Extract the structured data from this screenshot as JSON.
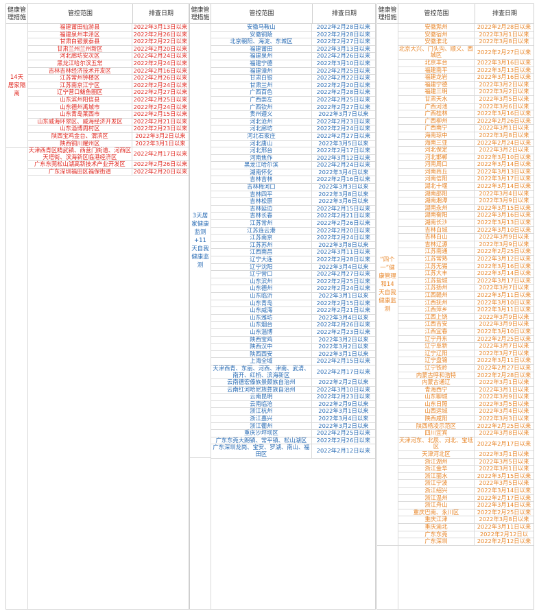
{
  "headers": [
    "健康管理措施",
    "管控范围",
    "排查日期"
  ],
  "groups": [
    {
      "measure": "14天居家隔离",
      "rows": [
        {
          "area": "福建莆田仙游县",
          "date": "2022年3月13日以来"
        },
        {
          "area": "福建泉州丰泽区",
          "date": "2022年2月26日以来"
        },
        {
          "area": "甘肃白银景泰县",
          "date": "2022年2月22日以来"
        },
        {
          "area": "甘肃兰州兰州新区",
          "date": "2022年2月20日以来"
        },
        {
          "area": "河北廊坊安次区",
          "date": "2022年2月24日以来"
        },
        {
          "area": "黑龙江哈尔滨五常",
          "date": "2022年2月24日以来"
        },
        {
          "area": "吉林吉林经济技术开发区",
          "date": "2022年2月16日以来"
        },
        {
          "area": "江苏常州钟楼区",
          "date": "2022年2月26日以来"
        },
        {
          "area": "江苏南京江宁区",
          "date": "2022年2月24日以来"
        },
        {
          "area": "辽宁营口鲅鱼圈区",
          "date": "2022年2月27日以来"
        },
        {
          "area": "山东滨州阳信县",
          "date": "2022年2月25日以来"
        },
        {
          "area": "山东德州禹城市",
          "date": "2022年2月24日以来"
        },
        {
          "area": "山东青岛莱西市",
          "date": "2022年2月15日以来"
        },
        {
          "area": "山东威海环翠区、威海经济开发区",
          "date": "2022年2月21日以来"
        },
        {
          "area": "山东淄博周村区",
          "date": "2022年2月23日以来"
        },
        {
          "area": "陕西宝鸡金台、渭滨区",
          "date": "2022年3月2日以来"
        },
        {
          "area": "陕西铜川耀州区",
          "date": "2022年3月1日以来"
        }
      ],
      "extra_rows": [
        {
          "area": "天津西青区精武镇、西营门街道、河西区天塔街、滨海新区临港经济区",
          "date": "2022年2月17日以来"
        },
        {
          "area": "广东东莞松山湖高新技术产业开发区",
          "date": "2022年2月26日以来"
        },
        {
          "area": "广东深圳福田区福保街道",
          "date": "2022年2月20日以来"
        }
      ]
    },
    {
      "measure": "3天居家健康监测+11天自我健康监测",
      "rows": [
        {
          "area": "安徽马鞍山",
          "date": "2022年2月28日以来"
        },
        {
          "area": "安徽铜陵",
          "date": "2022年2月28日以来"
        },
        {
          "area": "北京朝阳、海淀、东城区",
          "date": "2022年2月27日以来"
        },
        {
          "area": "福建莆田",
          "date": "2022年3月13日以来"
        },
        {
          "area": "福建泉州",
          "date": "2022年2月26日以来"
        },
        {
          "area": "福建宁德",
          "date": "2022年3月10日以来"
        },
        {
          "area": "福建漳州",
          "date": "2022年2月25日以来"
        },
        {
          "area": "甘肃白银",
          "date": "2022年2月22日以来"
        },
        {
          "area": "甘肃兰州",
          "date": "2022年2月20日以来"
        },
        {
          "area": "广西百色",
          "date": "2022年2月28日以来"
        },
        {
          "area": "广西崇左",
          "date": "2022年2月25日以来"
        },
        {
          "area": "广西钦州",
          "date": "2022年2月27日以来"
        },
        {
          "area": "贵州遵义",
          "date": "2022年3月7日以来"
        },
        {
          "area": "河北沧州",
          "date": "2022年2月23日以来"
        },
        {
          "area": "河北廊坊",
          "date": "2022年2月24日以来"
        },
        {
          "area": "河北石家庄",
          "date": "2022年2月27日以来"
        },
        {
          "area": "河北唐山",
          "date": "2022年3月5日以来"
        },
        {
          "area": "河北邢台",
          "date": "2022年2月17日以来"
        },
        {
          "area": "河南焦作",
          "date": "2022年3月12日以来"
        },
        {
          "area": "黑龙江哈尔滨",
          "date": "2022年2月24日以来"
        },
        {
          "area": "湖南怀化",
          "date": "2022年3月4日以来"
        },
        {
          "area": "吉林吉林",
          "date": "2022年2月16日以来"
        },
        {
          "area": "吉林梅河口",
          "date": "2022年3月3日以来"
        },
        {
          "area": "吉林四平",
          "date": "2022年3月8日以来"
        },
        {
          "area": "吉林松原",
          "date": "2022年3月6日以来"
        },
        {
          "area": "吉林延边",
          "date": "2022年2月15日以来"
        },
        {
          "area": "吉林长春",
          "date": "2022年2月21日以来"
        },
        {
          "area": "江苏常州",
          "date": "2022年2月26日以来"
        },
        {
          "area": "江苏连云港",
          "date": "2022年2月20日以来"
        },
        {
          "area": "江苏南京",
          "date": "2022年2月24日以来"
        },
        {
          "area": "江苏苏州",
          "date": "2022年3月8日以来"
        },
        {
          "area": "江西南昌",
          "date": "2022年3月11日以来"
        },
        {
          "area": "辽宁大连",
          "date": "2022年2月28日以来"
        },
        {
          "area": "辽宁沈阳",
          "date": "2022年3月4日以来"
        },
        {
          "area": "辽宁营口",
          "date": "2022年2月27日以来"
        },
        {
          "area": "山东滨州",
          "date": "2022年2月25日以来"
        },
        {
          "area": "山东德州",
          "date": "2022年2月24日以来"
        },
        {
          "area": "山东临沂",
          "date": "2022年3月1日以来"
        },
        {
          "area": "山东青岛",
          "date": "2022年2月15日以来"
        },
        {
          "area": "山东威海",
          "date": "2022年2月21日以来"
        },
        {
          "area": "山东潍坊",
          "date": "2022年3月4日以来"
        },
        {
          "area": "山东烟台",
          "date": "2022年2月26日以来"
        },
        {
          "area": "山东淄博",
          "date": "2022年2月23日以来"
        },
        {
          "area": "陕西宝鸡",
          "date": "2022年3月2日以来"
        },
        {
          "area": "陕西汉中",
          "date": "2022年3月2日以来"
        },
        {
          "area": "陕西西安",
          "date": "2022年3月1日以来"
        },
        {
          "area": "上海全域",
          "date": "2022年2月15日以来"
        },
        {
          "area": "天津西青、东丽、河西、津南、武清、南开、红桥、滨海新区",
          "date": "2022年2月17日以来"
        },
        {
          "area": "云南德宏傣族景颇族自治州",
          "date": "2022年2月2日以来"
        },
        {
          "area": "云南红河哈尼族彝族自治州",
          "date": "2022年3月10日以来"
        },
        {
          "area": "云南昆明",
          "date": "2022年2月23日以来"
        },
        {
          "area": "云南临沧",
          "date": "2022年2月9日以来"
        },
        {
          "area": "浙江杭州",
          "date": "2022年3月1日以来"
        },
        {
          "area": "浙江嘉兴",
          "date": "2022年3月4日以来"
        },
        {
          "area": "浙江衢州",
          "date": "2022年3月2日以来"
        },
        {
          "area": "重庆沙坪坝区",
          "date": "2022年2月25日以来"
        },
        {
          "area": "广东东莞大朗镇、常平镇、松山湖区",
          "date": "2022年2月26日以来"
        },
        {
          "area": "广东深圳龙岗、宝安、罗湖、南山、福田区",
          "date": "2022年2月12日以来"
        }
      ]
    },
    {
      "measure": "“四个一”健康管理和14天自我健康监测",
      "rows": [
        {
          "area": "安徽滁州",
          "date": "2022年2月28日以来"
        },
        {
          "area": "安徽宿州",
          "date": "2022年3月1日以来"
        },
        {
          "area": "安徽淮北",
          "date": "2022年3月8日以来"
        },
        {
          "area": "北京大兴、门头沟、顺义、西城区",
          "date": "2022年2月27日以来"
        },
        {
          "area": "北京丰台",
          "date": "2022年3月16日以来"
        },
        {
          "area": "福建南平",
          "date": "2022年3月13日以来"
        },
        {
          "area": "福建龙岩",
          "date": "2022年3月16日以来"
        },
        {
          "area": "福建宁德",
          "date": "2022年3月2日以来"
        },
        {
          "area": "福建三明",
          "date": "2022年3月2日以来"
        },
        {
          "area": "甘肃天水",
          "date": "2022年3月5日以来"
        },
        {
          "area": "广西河池",
          "date": "2022年3月6日以来"
        },
        {
          "area": "广西桂林",
          "date": "2022年3月16日以来"
        },
        {
          "area": "广西柳州",
          "date": "2022年2月26日以来"
        },
        {
          "area": "广西南宁",
          "date": "2022年3月1日以来"
        },
        {
          "area": "海南琼中",
          "date": "2022年3月8日以来"
        },
        {
          "area": "海南三亚",
          "date": "2022年2月24日以来"
        },
        {
          "area": "河北保定",
          "date": "2022年3月2日以来"
        },
        {
          "area": "河北邯郸",
          "date": "2022年3月10日以来"
        },
        {
          "area": "河南周口",
          "date": "2022年3月14日以来"
        },
        {
          "area": "河南商丘",
          "date": "2022年3月13日以来"
        },
        {
          "area": "河南信阳",
          "date": "2022年3月17日以来"
        },
        {
          "area": "湖北十堰",
          "date": "2022年3月14日以来"
        },
        {
          "area": "湖南邵阳",
          "date": "2022年3月4日以来"
        },
        {
          "area": "湖南湘潭",
          "date": "2022年3月9日以来"
        },
        {
          "area": "湖南永州",
          "date": "2022年3月15日以来"
        },
        {
          "area": "湖南衡阳",
          "date": "2022年3月16日以来"
        },
        {
          "area": "湖南长沙",
          "date": "2022年3月13日以来"
        },
        {
          "area": "吉林白城",
          "date": "2022年3月10日以来"
        },
        {
          "area": "吉林白山",
          "date": "2022年3月9日以来"
        },
        {
          "area": "吉林辽源",
          "date": "2022年3月9日以来"
        },
        {
          "area": "江苏南通",
          "date": "2022年2月25日以来"
        },
        {
          "area": "江苏常熟",
          "date": "2022年3月12日以来"
        },
        {
          "area": "江苏无锡",
          "date": "2022年3月16日以来"
        },
        {
          "area": "江苏大丰",
          "date": "2022年3月14日以来"
        },
        {
          "area": "江苏盐城",
          "date": "2022年3月17日以来"
        },
        {
          "area": "江苏扬州",
          "date": "2022年3月7日以来"
        },
        {
          "area": "江西赣州",
          "date": "2022年3月11日以来"
        },
        {
          "area": "江西抚州",
          "date": "2022年3月10日以来"
        },
        {
          "area": "江西萍乡",
          "date": "2022年3月11日以来"
        },
        {
          "area": "江西上饶",
          "date": "2022年3月9日以来"
        },
        {
          "area": "江西吉安",
          "date": "2022年3月9日以来"
        },
        {
          "area": "江西宜春",
          "date": "2022年3月10日以来"
        },
        {
          "area": "辽宁丹东",
          "date": "2022年2月25日以来"
        },
        {
          "area": "辽宁阜新",
          "date": "2022年3月7日以来"
        },
        {
          "area": "辽宁辽阳",
          "date": "2022年3月7日以来"
        },
        {
          "area": "辽宁盘锦",
          "date": "2022年3月11日以来"
        },
        {
          "area": "辽宁铁岭",
          "date": "2022年2月27日以来"
        },
        {
          "area": "内蒙古呼和浩特",
          "date": "2022年2月28日以来"
        },
        {
          "area": "内蒙古通辽",
          "date": "2022年3月1日以来"
        },
        {
          "area": "青海西宁",
          "date": "2022年3月1日以来"
        },
        {
          "area": "山东聊城",
          "date": "2022年3月9日以来"
        },
        {
          "area": "山东日照",
          "date": "2022年3月5日以来"
        },
        {
          "area": "山西运城",
          "date": "2022年3月4日以来"
        },
        {
          "area": "陕西咸阳",
          "date": "2022年3月3日以来"
        },
        {
          "area": "陕西杨凌示范区",
          "date": "2022年2月25日以来"
        },
        {
          "area": "四川宜宾",
          "date": "2022年3月8日以来"
        },
        {
          "area": "天津河东、北辰、河北、宝坻区",
          "date": "2022年2月17日以来"
        },
        {
          "area": "天津河北区",
          "date": "2022年3月1日以来"
        },
        {
          "area": "浙江湖州",
          "date": "2022年3月5日以来"
        },
        {
          "area": "浙江金华",
          "date": "2022年3月1日以来"
        },
        {
          "area": "浙江丽水",
          "date": "2022年3月15日以来"
        },
        {
          "area": "浙江宁波",
          "date": "2022年3月5日以来"
        },
        {
          "area": "浙江绍兴",
          "date": "2022年3月14日以来"
        },
        {
          "area": "浙江温州",
          "date": "2022年2月17日以来"
        },
        {
          "area": "浙江舟山",
          "date": "2022年3月14日以来"
        },
        {
          "area": "重庆巴南、永川区",
          "date": "2022年2月25日以来"
        },
        {
          "area": "重庆江津",
          "date": "2022年3月8日以来"
        },
        {
          "area": "重庆渝北",
          "date": "2022年3月11日以来"
        },
        {
          "area": "广东东莞",
          "date": "2022年2月12日以"
        },
        {
          "area": "广东深圳",
          "date": "2022年2月12日以来"
        }
      ]
    }
  ]
}
